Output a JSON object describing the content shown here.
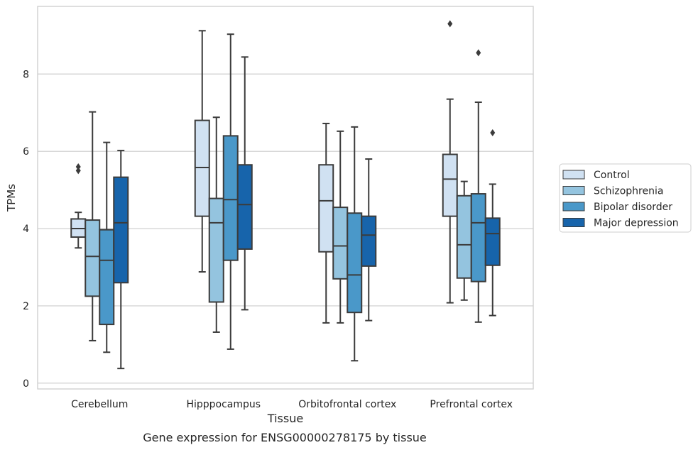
{
  "chart_data": {
    "type": "box",
    "title": "Gene expression for ENSG00000278175 by tissue",
    "xlabel": "Tissue",
    "ylabel": "TPMs",
    "ylim": [
      -0.15,
      9.75
    ],
    "yticks": [
      0,
      2,
      4,
      6,
      8
    ],
    "grid": "horizontal",
    "legend_position": "right",
    "categories": [
      "Cerebellum",
      "Hipppocampus",
      "Orbitofrontal cortex",
      "Prefrontal cortex"
    ],
    "series": [
      {
        "name": "Control",
        "color": "#d0e1f2",
        "boxes": [
          {
            "whislo": 3.5,
            "q1": 3.78,
            "med": 4.0,
            "q3": 4.25,
            "whishi": 4.42,
            "fliers": [
              5.5,
              5.6
            ]
          },
          {
            "whislo": 2.88,
            "q1": 4.32,
            "med": 5.58,
            "q3": 6.8,
            "whishi": 9.12,
            "fliers": []
          },
          {
            "whislo": 1.56,
            "q1": 3.4,
            "med": 4.72,
            "q3": 5.65,
            "whishi": 6.72,
            "fliers": []
          },
          {
            "whislo": 2.08,
            "q1": 4.32,
            "med": 5.28,
            "q3": 5.92,
            "whishi": 7.35,
            "fliers": [
              9.3
            ]
          }
        ]
      },
      {
        "name": "Schizophrenia",
        "color": "#94c4df",
        "boxes": [
          {
            "whislo": 1.1,
            "q1": 2.25,
            "med": 3.28,
            "q3": 4.22,
            "whishi": 7.02,
            "fliers": []
          },
          {
            "whislo": 1.32,
            "q1": 2.1,
            "med": 4.15,
            "q3": 4.78,
            "whishi": 6.88,
            "fliers": []
          },
          {
            "whislo": 1.56,
            "q1": 2.7,
            "med": 3.55,
            "q3": 4.55,
            "whishi": 6.52,
            "fliers": []
          },
          {
            "whislo": 2.15,
            "q1": 2.72,
            "med": 3.58,
            "q3": 4.85,
            "whishi": 5.22,
            "fliers": []
          }
        ]
      },
      {
        "name": "Bipolar disorder",
        "color": "#4a98c9",
        "boxes": [
          {
            "whislo": 0.8,
            "q1": 1.52,
            "med": 3.18,
            "q3": 3.97,
            "whishi": 6.23,
            "fliers": []
          },
          {
            "whislo": 0.88,
            "q1": 3.18,
            "med": 4.75,
            "q3": 6.4,
            "whishi": 9.03,
            "fliers": []
          },
          {
            "whislo": 0.58,
            "q1": 1.83,
            "med": 2.8,
            "q3": 4.4,
            "whishi": 6.63,
            "fliers": []
          },
          {
            "whislo": 1.58,
            "q1": 2.63,
            "med": 4.15,
            "q3": 4.9,
            "whishi": 7.27,
            "fliers": [
              8.55
            ]
          }
        ]
      },
      {
        "name": "Major depression",
        "color": "#1764ab",
        "boxes": [
          {
            "whislo": 0.38,
            "q1": 2.6,
            "med": 4.15,
            "q3": 5.33,
            "whishi": 6.02,
            "fliers": []
          },
          {
            "whislo": 1.9,
            "q1": 3.47,
            "med": 4.62,
            "q3": 5.65,
            "whishi": 8.44,
            "fliers": []
          },
          {
            "whislo": 1.62,
            "q1": 3.03,
            "med": 3.83,
            "q3": 4.32,
            "whishi": 5.8,
            "fliers": []
          },
          {
            "whislo": 1.75,
            "q1": 3.05,
            "med": 3.87,
            "q3": 4.27,
            "whishi": 5.15,
            "fliers": [
              6.48
            ]
          }
        ]
      }
    ]
  }
}
